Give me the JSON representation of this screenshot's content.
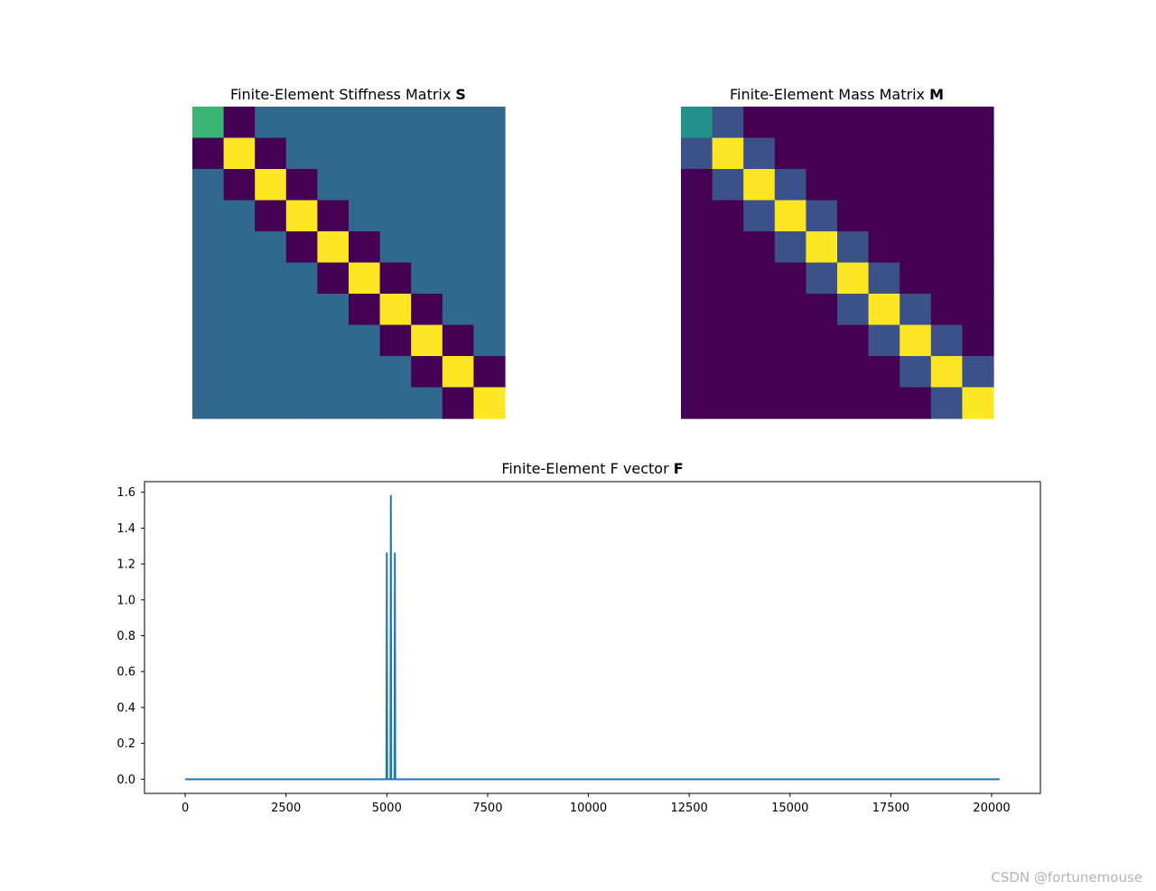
{
  "colors": {
    "viridis_scale": [
      "#440154",
      "#46327e",
      "#365c8d",
      "#277f8e",
      "#1fa187",
      "#4ac16d",
      "#a0da39",
      "#fde725"
    ],
    "line_color": "#1f77b4",
    "watermark_color": "#b3b3b3"
  },
  "watermark": "CSDN @fortunemouse",
  "chart_data": [
    {
      "type": "heatmap",
      "title_prefix": "Finite-Element Stiffness Matrix ",
      "title_symbol": "S",
      "colormap": "viridis",
      "axes_visible": false,
      "vmin": -1,
      "vmax": 2,
      "values": [
        [
          1,
          -1,
          0,
          0,
          0,
          0,
          0,
          0,
          0,
          0
        ],
        [
          -1,
          2,
          -1,
          0,
          0,
          0,
          0,
          0,
          0,
          0
        ],
        [
          0,
          -1,
          2,
          -1,
          0,
          0,
          0,
          0,
          0,
          0
        ],
        [
          0,
          0,
          -1,
          2,
          -1,
          0,
          0,
          0,
          0,
          0
        ],
        [
          0,
          0,
          0,
          -1,
          2,
          -1,
          0,
          0,
          0,
          0
        ],
        [
          0,
          0,
          0,
          0,
          -1,
          2,
          -1,
          0,
          0,
          0
        ],
        [
          0,
          0,
          0,
          0,
          0,
          -1,
          2,
          -1,
          0,
          0
        ],
        [
          0,
          0,
          0,
          0,
          0,
          0,
          -1,
          2,
          -1,
          0
        ],
        [
          0,
          0,
          0,
          0,
          0,
          0,
          0,
          -1,
          2,
          -1
        ],
        [
          0,
          0,
          0,
          0,
          0,
          0,
          0,
          0,
          -1,
          2
        ]
      ]
    },
    {
      "type": "heatmap",
      "title_prefix": "Finite-Element Mass Matrix ",
      "title_symbol": "M",
      "colormap": "viridis",
      "axes_visible": false,
      "vmin": 0,
      "vmax": 4,
      "values": [
        [
          2,
          1,
          0,
          0,
          0,
          0,
          0,
          0,
          0,
          0
        ],
        [
          1,
          4,
          1,
          0,
          0,
          0,
          0,
          0,
          0,
          0
        ],
        [
          0,
          1,
          4,
          1,
          0,
          0,
          0,
          0,
          0,
          0
        ],
        [
          0,
          0,
          1,
          4,
          1,
          0,
          0,
          0,
          0,
          0
        ],
        [
          0,
          0,
          0,
          1,
          4,
          1,
          0,
          0,
          0,
          0
        ],
        [
          0,
          0,
          0,
          0,
          1,
          4,
          1,
          0,
          0,
          0
        ],
        [
          0,
          0,
          0,
          0,
          0,
          1,
          4,
          1,
          0,
          0
        ],
        [
          0,
          0,
          0,
          0,
          0,
          0,
          1,
          4,
          1,
          0
        ],
        [
          0,
          0,
          0,
          0,
          0,
          0,
          0,
          1,
          4,
          1
        ],
        [
          0,
          0,
          0,
          0,
          0,
          0,
          0,
          0,
          1,
          4
        ]
      ]
    },
    {
      "type": "line",
      "title_prefix": "Finite-Element F vector ",
      "title_symbol": "F",
      "grid": false,
      "xlim": [
        -1010,
        21210
      ],
      "ylim": [
        -0.079,
        1.659
      ],
      "xticks": [
        0,
        2500,
        5000,
        7500,
        10000,
        12500,
        15000,
        17500,
        20000
      ],
      "xtick_labels": [
        "0",
        "2500",
        "5000",
        "7500",
        "10000",
        "12500",
        "15000",
        "17500",
        "20000"
      ],
      "yticks": [
        0.0,
        0.2,
        0.4,
        0.6,
        0.8,
        1.0,
        1.2,
        1.4,
        1.6
      ],
      "ytick_labels": [
        "0.0",
        "0.2",
        "0.4",
        "0.6",
        "0.8",
        "1.0",
        "1.2",
        "1.4",
        "1.6"
      ],
      "series": [
        {
          "x": [
            0,
            4990,
            5000,
            5010,
            5090,
            5100,
            5110,
            5190,
            5200,
            5210,
            20200
          ],
          "y": [
            0,
            0,
            1.26,
            0,
            0,
            1.58,
            0,
            0,
            1.26,
            0,
            0
          ]
        }
      ]
    }
  ]
}
